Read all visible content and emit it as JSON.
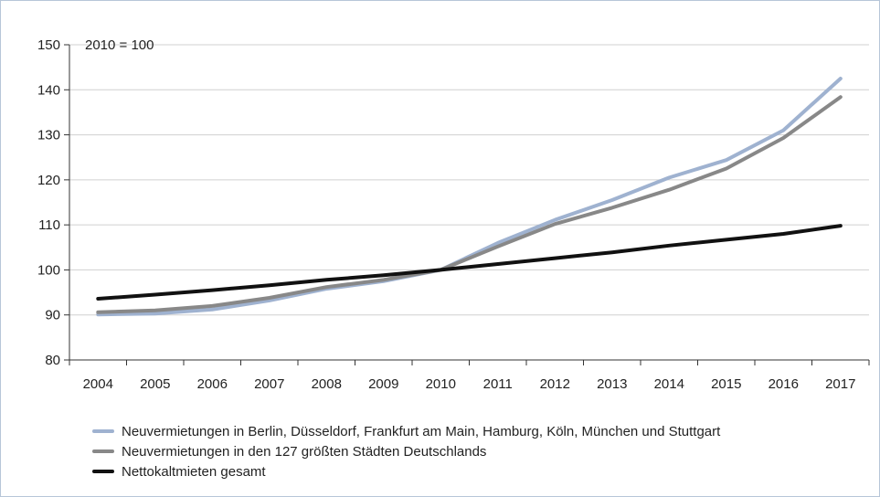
{
  "chart_data": {
    "type": "line",
    "title": "",
    "unit_label": "2010 = 100",
    "xlabel": "",
    "ylabel": "",
    "ylim": [
      80,
      150
    ],
    "yticks": [
      80,
      90,
      100,
      110,
      120,
      130,
      140,
      150
    ],
    "categories": [
      "2004",
      "2005",
      "2006",
      "2007",
      "2008",
      "2009",
      "2010",
      "2011",
      "2012",
      "2013",
      "2014",
      "2015",
      "2016",
      "2017"
    ],
    "grid": true,
    "legend_position": "bottom",
    "series": [
      {
        "name": "Neuvermietungen in Berlin, Düsseldorf, Frankfurt am Main, Hamburg, Köln, München und Stuttgart",
        "color": "#9fb2d0",
        "values": [
          90.1,
          90.3,
          91.2,
          93.2,
          95.8,
          97.5,
          100.0,
          106.0,
          111.1,
          115.5,
          120.5,
          124.4,
          131.0,
          142.5
        ]
      },
      {
        "name": "Neuvermietungen in den 127 größten Städten Deutschlands",
        "color": "#888888",
        "values": [
          90.6,
          91.0,
          92.0,
          93.8,
          96.2,
          97.8,
          100.0,
          105.2,
          110.2,
          113.8,
          117.8,
          122.5,
          129.3,
          138.4
        ]
      },
      {
        "name": "Nettokaltmieten gesamt",
        "color": "#111111",
        "values": [
          93.6,
          94.5,
          95.5,
          96.6,
          97.8,
          98.8,
          100.0,
          101.3,
          102.6,
          103.9,
          105.4,
          106.7,
          108.0,
          109.8
        ]
      }
    ]
  }
}
